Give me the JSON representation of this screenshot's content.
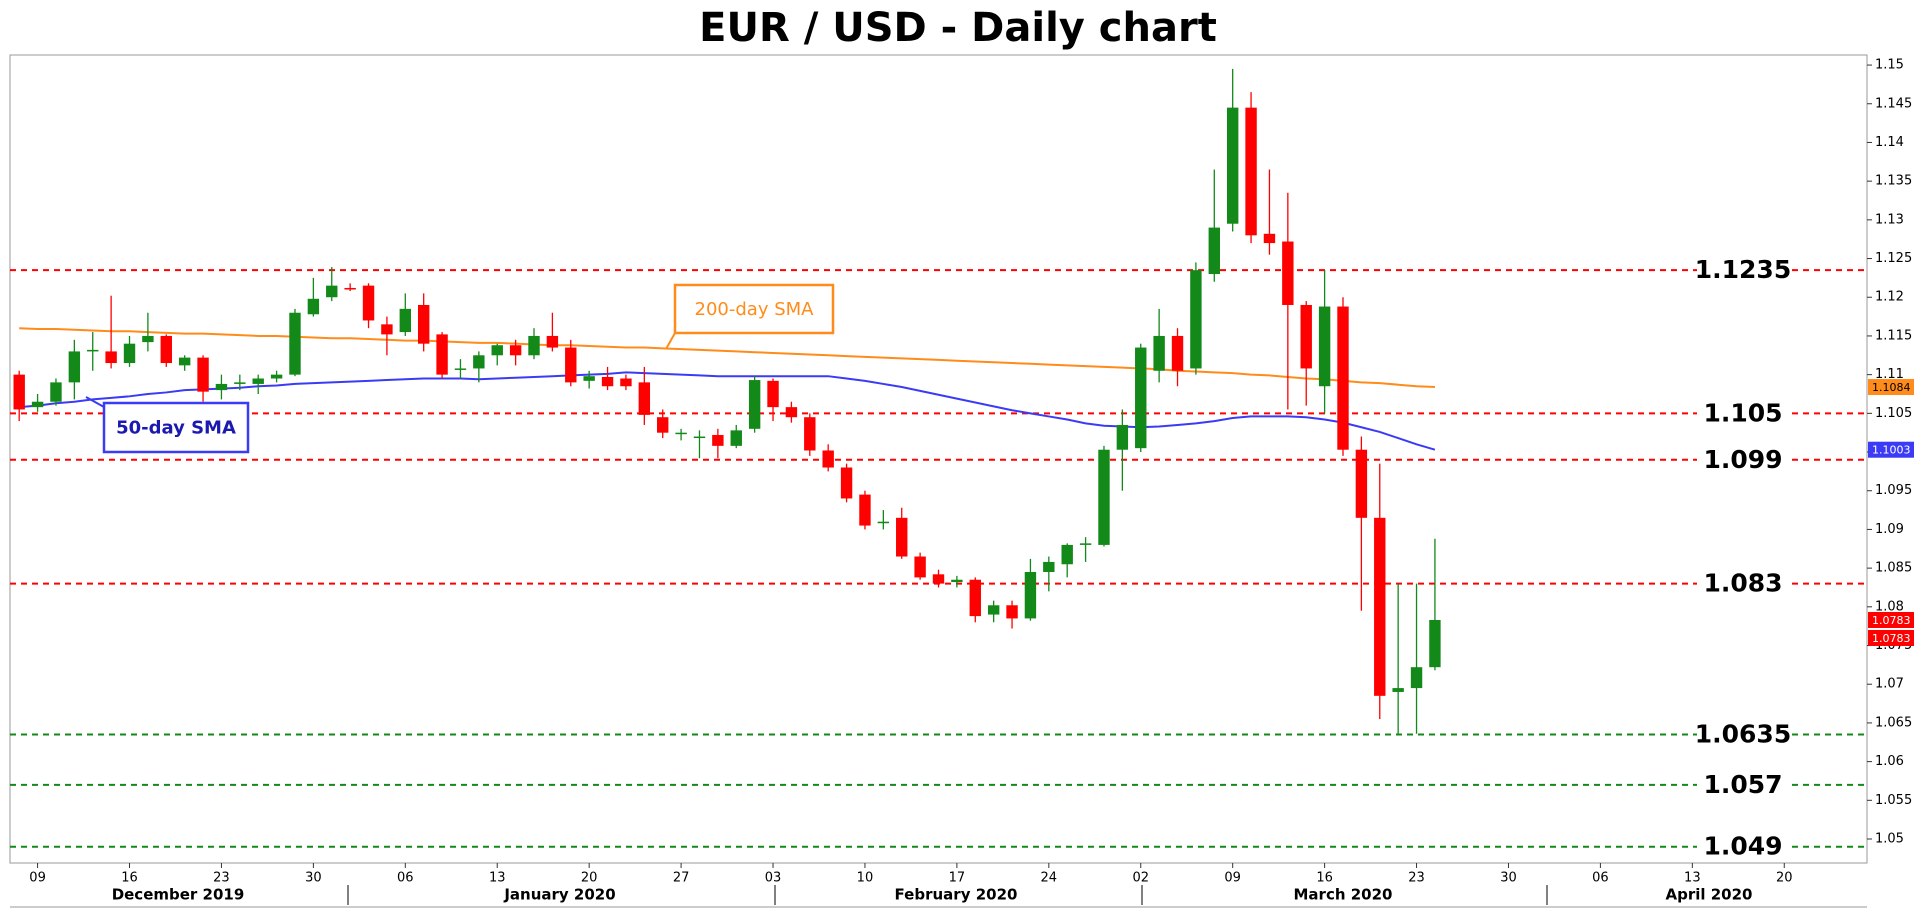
{
  "chart_data": {
    "type": "candlestick",
    "title": "EUR / USD - Daily chart",
    "categories": [
      null,
      "09",
      null,
      null,
      null,
      null,
      "16",
      null,
      null,
      null,
      null,
      "23",
      null,
      null,
      null,
      null,
      "30",
      null,
      null,
      null,
      null,
      "06",
      null,
      null,
      null,
      null,
      "13",
      null,
      null,
      null,
      null,
      "20",
      null,
      null,
      null,
      null,
      "27",
      null,
      null,
      null,
      null,
      "03",
      null,
      null,
      null,
      null,
      "10",
      null,
      null,
      null,
      null,
      "17",
      null,
      null,
      null,
      null,
      "24",
      null,
      null,
      null,
      null,
      "02",
      null,
      null,
      null,
      null,
      "09",
      null,
      null,
      null,
      null,
      "16",
      null,
      null,
      null,
      null,
      "23",
      null,
      null,
      null,
      null,
      "30",
      null,
      null,
      null,
      null,
      "06",
      null,
      null,
      null,
      null,
      "13",
      null,
      null,
      null,
      null,
      "20",
      null,
      null,
      null,
      null
    ],
    "month_labels": [
      "December 2019",
      "January 2020",
      "February 2020",
      "March 2020",
      "April 2020"
    ],
    "open": [
      1.11,
      1.1058,
      1.1065,
      1.109,
      1.113,
      1.113,
      1.1115,
      1.1142,
      1.115,
      1.1112,
      1.1122,
      1.108,
      1.1088,
      1.1088,
      1.1095,
      1.11,
      1.1178,
      1.12,
      1.1212,
      1.1215,
      1.1165,
      1.1155,
      1.119,
      1.1152,
      1.1108,
      1.1108,
      1.1125,
      1.1138,
      1.1125,
      1.115,
      1.1135,
      1.1092,
      1.1097,
      1.1095,
      1.109,
      1.1045,
      1.1025,
      1.102,
      1.1022,
      1.1008,
      1.103,
      1.1092,
      1.1058,
      1.1045,
      1.1002,
      1.098,
      1.0945,
      1.0908,
      1.0915,
      1.0865,
      1.0842,
      1.0832,
      1.0835,
      1.079,
      1.0802,
      1.0785,
      1.0845,
      1.0855,
      1.088,
      1.088,
      1.1003,
      1.1005,
      1.1105,
      1.115,
      1.1108,
      1.123,
      1.1295,
      1.1445,
      1.1282,
      1.1272,
      1.119,
      1.1085,
      1.1188,
      1.1003,
      1.0915,
      1.069,
      1.0695,
      1.0722,
      null,
      null,
      null,
      null,
      null,
      null,
      null,
      null,
      null,
      null,
      null,
      null,
      null,
      null,
      null,
      null,
      null,
      null,
      null,
      null,
      null,
      null,
      null
    ],
    "high": [
      1.1105,
      1.1075,
      1.1095,
      1.1145,
      1.1155,
      1.1202,
      1.115,
      1.118,
      1.1152,
      1.1125,
      1.1125,
      1.11,
      1.11,
      1.11,
      1.1105,
      1.1185,
      1.1225,
      1.1239,
      1.1218,
      1.1218,
      1.1175,
      1.1205,
      1.1205,
      1.1155,
      1.112,
      1.113,
      1.114,
      1.1145,
      1.116,
      1.118,
      1.1145,
      1.1105,
      1.111,
      1.11,
      1.111,
      1.1055,
      1.103,
      1.1028,
      1.103,
      1.1035,
      1.1098,
      1.1095,
      1.1065,
      1.105,
      1.101,
      1.0985,
      1.095,
      1.0925,
      1.0928,
      1.087,
      1.0848,
      1.084,
      1.0838,
      1.0808,
      1.0808,
      1.0862,
      1.0865,
      1.0882,
      1.089,
      1.1008,
      1.1055,
      1.114,
      1.1185,
      1.116,
      1.1245,
      1.1365,
      1.1495,
      1.1465,
      1.1365,
      1.1335,
      1.1195,
      1.1235,
      1.12,
      1.102,
      1.0985,
      1.083,
      1.083,
      1.0888,
      null,
      null,
      null,
      null,
      null,
      null,
      null,
      null,
      null,
      null,
      null,
      null,
      null,
      null,
      null,
      null,
      null,
      null,
      null,
      null,
      null,
      null,
      null
    ],
    "low": [
      1.104,
      1.1052,
      1.106,
      1.1068,
      1.1105,
      1.1108,
      1.111,
      1.113,
      1.111,
      1.1105,
      1.1065,
      1.1068,
      1.108,
      1.1075,
      1.109,
      1.1098,
      1.1175,
      1.1195,
      1.1208,
      1.116,
      1.1125,
      1.115,
      1.113,
      1.1095,
      1.1095,
      1.109,
      1.1112,
      1.1112,
      1.112,
      1.113,
      1.1085,
      1.1082,
      1.108,
      1.108,
      1.1035,
      1.1018,
      1.1015,
      1.0992,
      1.0992,
      1.1005,
      1.1025,
      1.104,
      1.1038,
      1.0995,
      1.0975,
      1.0935,
      1.09,
      1.09,
      1.0862,
      1.0835,
      1.0825,
      1.0825,
      1.078,
      1.078,
      1.0772,
      1.0782,
      1.082,
      1.0838,
      1.0858,
      1.0878,
      1.095,
      1.1,
      1.109,
      1.1085,
      1.11,
      1.122,
      1.1285,
      1.127,
      1.1255,
      1.1055,
      1.106,
      1.105,
      1.0995,
      1.0795,
      1.0655,
      1.0636,
      1.0636,
      1.0718,
      null,
      null,
      null,
      null,
      null,
      null,
      null,
      null,
      null,
      null,
      null,
      null,
      null,
      null,
      null,
      null,
      null,
      null,
      null,
      null,
      null,
      null,
      null
    ],
    "close": [
      1.1055,
      1.1065,
      1.109,
      1.113,
      1.1132,
      1.1115,
      1.114,
      1.115,
      1.1115,
      1.1122,
      1.1078,
      1.1088,
      1.109,
      1.1095,
      1.11,
      1.118,
      1.1198,
      1.1215,
      1.121,
      1.117,
      1.1152,
      1.1185,
      1.114,
      1.11,
      1.1108,
      1.1125,
      1.1138,
      1.1125,
      1.115,
      1.1135,
      1.109,
      1.1098,
      1.1085,
      1.1085,
      1.1048,
      1.1025,
      1.1025,
      1.102,
      1.1008,
      1.1028,
      1.1093,
      1.1058,
      1.1045,
      1.1002,
      1.098,
      1.094,
      1.0905,
      1.091,
      1.0865,
      1.0838,
      1.083,
      1.0835,
      1.0788,
      1.0802,
      1.0785,
      1.0845,
      1.0858,
      1.088,
      1.0882,
      1.1003,
      1.1035,
      1.1135,
      1.115,
      1.1105,
      1.1235,
      1.129,
      1.1445,
      1.128,
      1.127,
      1.119,
      1.1108,
      1.1188,
      1.1003,
      1.0915,
      1.0685,
      1.0695,
      1.0722,
      1.0783,
      null,
      null,
      null,
      null,
      null,
      null,
      null,
      null,
      null,
      null,
      null,
      null,
      null,
      null,
      null,
      null,
      null,
      null,
      null,
      null,
      null,
      null,
      null
    ],
    "up_color": "#13891a",
    "down_color": "#ff0000",
    "series": [
      {
        "name": "50-day SMA",
        "color": "#3b3bf5",
        "values": [
          1.1058,
          1.106,
          1.1063,
          1.1065,
          1.1068,
          1.107,
          1.1072,
          1.1075,
          1.1077,
          1.108,
          1.1081,
          1.1082,
          1.1083,
          1.1085,
          1.1086,
          1.1088,
          1.1089,
          1.109,
          1.1091,
          1.1092,
          1.1093,
          1.1094,
          1.1095,
          1.1095,
          1.1095,
          1.1094,
          1.1095,
          1.1096,
          1.1097,
          1.1098,
          1.1099,
          1.11,
          1.1101,
          1.1103,
          1.1102,
          1.1101,
          1.11,
          1.1099,
          1.1098,
          1.1098,
          1.1098,
          1.1098,
          1.1098,
          1.1098,
          1.1098,
          1.1095,
          1.1092,
          1.1088,
          1.1084,
          1.1079,
          1.1074,
          1.1069,
          1.1064,
          1.1059,
          1.1054,
          1.105,
          1.1046,
          1.1042,
          1.1037,
          1.1034,
          1.1033,
          1.1032,
          1.1033,
          1.1035,
          1.1037,
          1.104,
          1.1044,
          1.1046,
          1.1046,
          1.1046,
          1.1045,
          1.1042,
          1.1038,
          1.1032,
          1.1026,
          1.1018,
          1.101,
          1.1003,
          null,
          null,
          null,
          null,
          null,
          null,
          null,
          null,
          null,
          null,
          null,
          null,
          null,
          null,
          null,
          null,
          null,
          null,
          null,
          null,
          null,
          null,
          null
        ]
      },
      {
        "name": "200-day SMA",
        "color": "#ff8c1a",
        "values": [
          1.116,
          1.1159,
          1.1159,
          1.1158,
          1.1157,
          1.1156,
          1.1156,
          1.1155,
          1.1154,
          1.1153,
          1.1153,
          1.1152,
          1.1151,
          1.115,
          1.115,
          1.1149,
          1.1148,
          1.1147,
          1.1147,
          1.1146,
          1.1145,
          1.1144,
          1.1144,
          1.1143,
          1.1142,
          1.1141,
          1.1141,
          1.114,
          1.1139,
          1.1138,
          1.1138,
          1.1137,
          1.1136,
          1.1135,
          1.1135,
          1.1134,
          1.1133,
          1.1132,
          1.1131,
          1.113,
          1.1129,
          1.1128,
          1.1127,
          1.1126,
          1.1125,
          1.1124,
          1.1123,
          1.1122,
          1.1121,
          1.112,
          1.1119,
          1.1118,
          1.1117,
          1.1116,
          1.1115,
          1.1114,
          1.1113,
          1.1112,
          1.1111,
          1.111,
          1.1109,
          1.1108,
          1.1107,
          1.1105,
          1.1104,
          1.1103,
          1.1102,
          1.11,
          1.1099,
          1.1097,
          1.1095,
          1.1094,
          1.1092,
          1.109,
          1.1089,
          1.1087,
          1.1085,
          1.1084,
          null,
          null,
          null,
          null,
          null,
          null,
          null,
          null,
          null,
          null,
          null,
          null,
          null,
          null,
          null,
          null,
          null,
          null,
          null,
          null,
          null,
          null,
          null
        ]
      }
    ],
    "ylim": [
      1.0469,
      1.1513
    ],
    "yticks": [
      1.05,
      1.055,
      1.06,
      1.065,
      1.07,
      1.075,
      1.08,
      1.085,
      1.09,
      1.095,
      1.1,
      1.105,
      1.11,
      1.115,
      1.12,
      1.125,
      1.13,
      1.135,
      1.14,
      1.145,
      1.15
    ],
    "levels": [
      {
        "value": 1.1235,
        "color": "#ff0000"
      },
      {
        "value": 1.105,
        "color": "#ff0000"
      },
      {
        "value": 1.099,
        "color": "#ff0000"
      },
      {
        "value": 1.083,
        "color": "#ff0000"
      },
      {
        "value": 1.0635,
        "color": "#13891a"
      },
      {
        "value": 1.057,
        "color": "#13891a"
      },
      {
        "value": 1.049,
        "color": "#13891a"
      }
    ],
    "price_tags": [
      {
        "value": 1.1084,
        "color": "#ff8c1a"
      },
      {
        "value": 1.1003,
        "color": "#3b3bf5"
      },
      {
        "value": 1.0783,
        "color": "#ff0000"
      },
      {
        "value": 1.0783,
        "color": "#ff0000"
      }
    ],
    "grid": false
  }
}
